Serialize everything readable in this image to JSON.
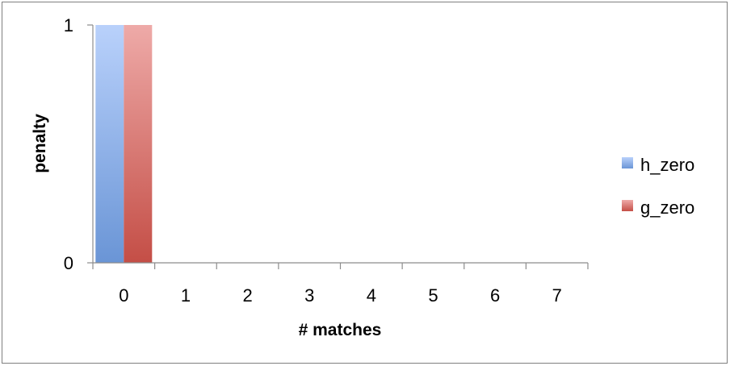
{
  "chart_data": {
    "type": "bar",
    "categories": [
      "0",
      "1",
      "2",
      "3",
      "4",
      "5",
      "6",
      "7"
    ],
    "series": [
      {
        "name": "h_zero",
        "values": [
          1,
          0,
          0,
          0,
          0,
          0,
          0,
          0
        ],
        "color": "#7fa6e0"
      },
      {
        "name": "g_zero",
        "values": [
          1,
          0,
          0,
          0,
          0,
          0,
          0,
          0
        ],
        "color": "#d98080"
      }
    ],
    "title": "",
    "xlabel": "# matches",
    "ylabel": "penalty",
    "ylim": [
      0,
      1
    ],
    "yticks": [
      "0",
      "1"
    ],
    "grid": false,
    "legend": "right"
  }
}
